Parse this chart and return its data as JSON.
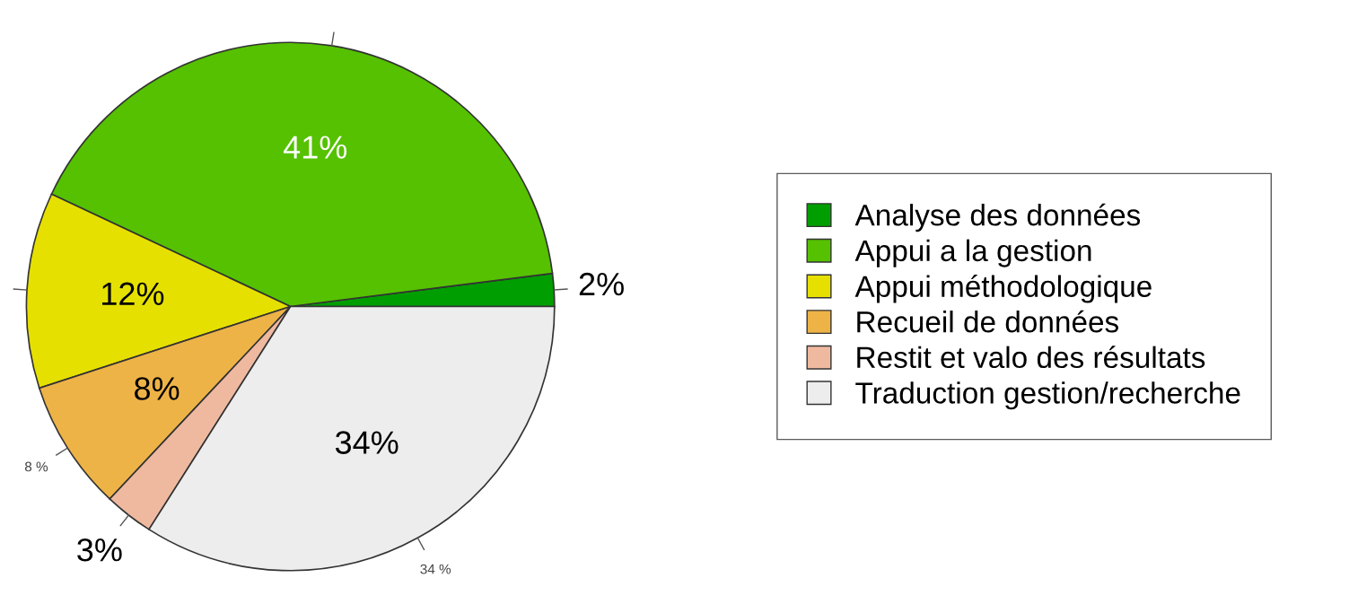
{
  "chart_data": {
    "type": "pie",
    "categories": [
      "Analyse des données",
      "Appui a la gestion",
      "Appui méthodologique",
      "Recueil de données",
      "Restit et valo des résultats",
      "Traduction gestion/recherche"
    ],
    "values": [
      2,
      41,
      12,
      8,
      3,
      34
    ],
    "colors": [
      "#009e00",
      "#55c100",
      "#e6e000",
      "#eeb347",
      "#efb9a0",
      "#ededed"
    ],
    "value_labels": [
      "2%",
      "41%",
      "12%",
      "8%",
      "3%",
      "34%"
    ],
    "annotations": [
      {
        "text": "8 %",
        "x": "Recueil de données"
      },
      {
        "text": "34 %",
        "x": "Traduction gestion/recherche"
      }
    ],
    "legend": "right"
  }
}
